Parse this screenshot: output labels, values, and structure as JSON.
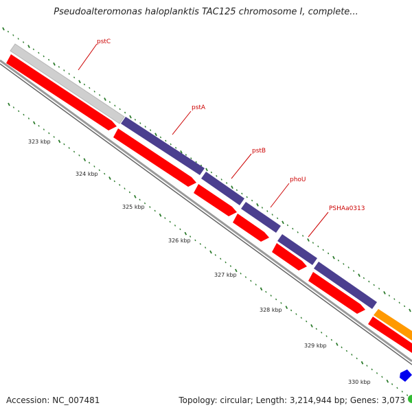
{
  "title": "Pseudoalteromonas haloplanktis TAC125 chromosome I, complete...",
  "footer": {
    "accession": "Accession: NC_007481",
    "summary": "Topology: circular; Length: 3,214,944 bp; Genes: 3,073"
  },
  "colors": {
    "gene_label": "#cc0000",
    "forward_cds": "#ff0000",
    "feature_purple": "#4b3f8f",
    "feature_gray": "#c8c8c8",
    "feature_orange": "#ff9900",
    "feature_blue": "#0000ee",
    "feature_green": "#2ca02c",
    "tick": "#2a7a2a",
    "backbone": "#888888"
  },
  "gene_labels": [
    "pstC",
    "pstA",
    "pstB",
    "phoU",
    "PSHAa0313"
  ],
  "position_ticks": [
    "323 kbp",
    "324 kbp",
    "325 kbp",
    "326 kbp",
    "327 kbp",
    "328 kbp",
    "329 kbp",
    "330 kbp"
  ]
}
